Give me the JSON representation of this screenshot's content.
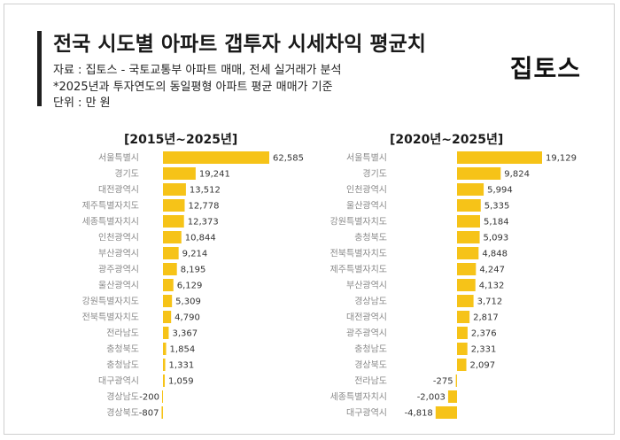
{
  "header": {
    "title": "전국 시도별 아파트 갭투자 시세차익 평균치",
    "source": "자료 : 집토스 - 국토교통부 아파트 매매, 전세 실거래가 분석",
    "note": "*2025년과 투자연도의 동일평형 아파트 평균 매매가 기준",
    "unit": "단위 : 만 원",
    "logo": "집토스"
  },
  "colors": {
    "bar": "#f6c318",
    "accent": "#1f1f1f"
  },
  "chart_data": [
    {
      "type": "bar",
      "orientation": "horizontal",
      "title": "[2015년~2025년]",
      "categories": [
        "서울특별시",
        "경기도",
        "대전광역시",
        "제주특별자치도",
        "세종특별자치시",
        "인천광역시",
        "부산광역시",
        "광주광역시",
        "울산광역시",
        "강원특별자치도",
        "전북특별자치도",
        "전라남도",
        "충청북도",
        "충청남도",
        "대구광역시",
        "경상남도",
        "경상북도"
      ],
      "values": [
        62585,
        19241,
        13512,
        12778,
        12373,
        10844,
        9214,
        8195,
        6129,
        5309,
        4790,
        3367,
        1854,
        1331,
        1059,
        -200,
        -807
      ],
      "value_labels": [
        "62,585",
        "19,241",
        "13,512",
        "12,778",
        "12,373",
        "10,844",
        "9,214",
        "8,195",
        "6,129",
        "5,309",
        "4,790",
        "3,367",
        "1,854",
        "1,331",
        "1,059",
        "-200",
        "-807"
      ]
    },
    {
      "type": "bar",
      "orientation": "horizontal",
      "title": "[2020년~2025년]",
      "categories": [
        "서울특별시",
        "경기도",
        "인천광역시",
        "울산광역시",
        "강원특별자치도",
        "충청북도",
        "전북특별자치도",
        "제주특별자치도",
        "부산광역시",
        "경상남도",
        "대전광역시",
        "광주광역시",
        "충청남도",
        "경상북도",
        "전라남도",
        "세종특별자치시",
        "대구광역시"
      ],
      "values": [
        19129,
        9824,
        5994,
        5335,
        5184,
        5093,
        4848,
        4247,
        4132,
        3712,
        2817,
        2376,
        2331,
        2097,
        -275,
        -2003,
        -4818
      ],
      "value_labels": [
        "19,129",
        "9,824",
        "5,994",
        "5,335",
        "5,184",
        "5,093",
        "4,848",
        "4,247",
        "4,132",
        "3,712",
        "2,817",
        "2,376",
        "2,331",
        "2,097",
        "-275",
        "-2,003",
        "-4,818"
      ]
    }
  ]
}
